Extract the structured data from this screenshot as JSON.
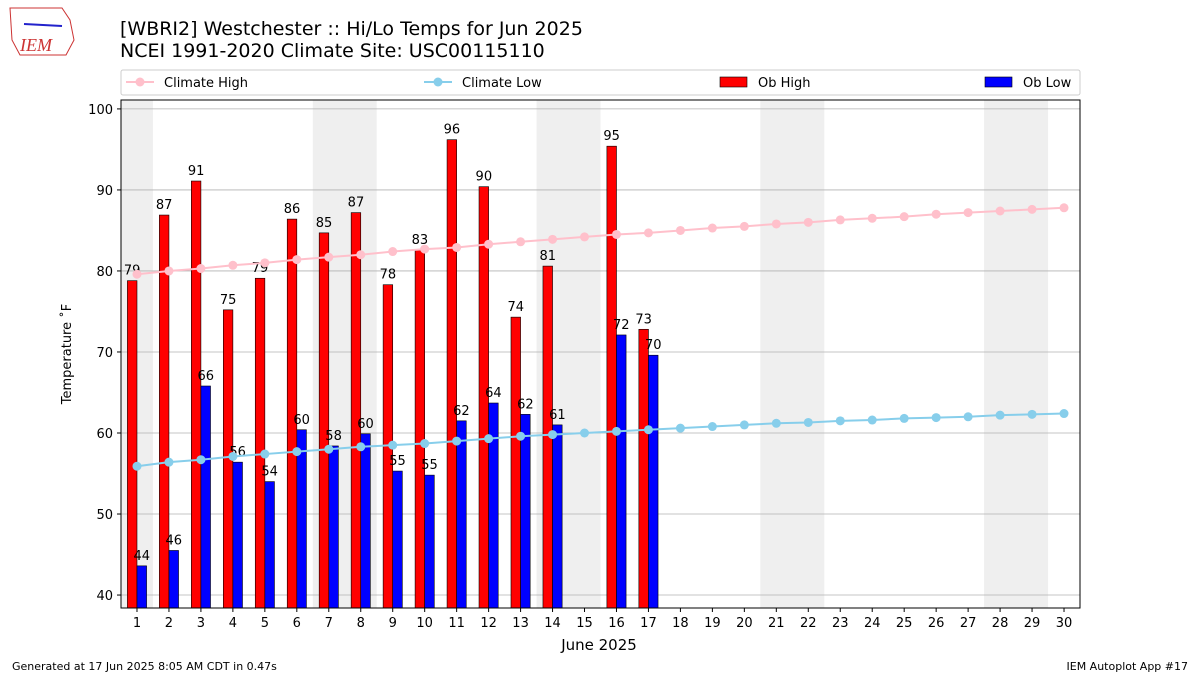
{
  "chart_data": {
    "type": "bar_line",
    "title": "[WBRI2] Westchester :: Hi/Lo Temps for Jun 2025",
    "subtitle": "NCEI 1991-2020 Climate Site: USC00115110",
    "x_label": "June 2025",
    "y_label": "Temperature ˚F",
    "footer_left": "Generated at 17 Jun 2025 8:05 AM CDT in 0.47s",
    "footer_right": "IEM Autoplot App #17",
    "logo_text": "IEM",
    "x": [
      1,
      2,
      3,
      4,
      5,
      6,
      7,
      8,
      9,
      10,
      11,
      12,
      13,
      14,
      15,
      16,
      17,
      18,
      19,
      20,
      21,
      22,
      23,
      24,
      25,
      26,
      27,
      28,
      29,
      30
    ],
    "xlim": [
      0.5,
      30.5
    ],
    "xticks": [
      1,
      2,
      3,
      4,
      5,
      6,
      7,
      8,
      9,
      10,
      11,
      12,
      13,
      14,
      15,
      16,
      17,
      18,
      19,
      20,
      21,
      22,
      23,
      24,
      25,
      26,
      27,
      28,
      29,
      30
    ],
    "ylim": [
      38.4,
      101.1
    ],
    "yticks": [
      40,
      50,
      60,
      70,
      80,
      90,
      100
    ],
    "grid": true,
    "weekend_shading": [
      [
        0.5,
        1.5
      ],
      [
        6.5,
        8.5
      ],
      [
        13.5,
        15.5
      ],
      [
        20.5,
        22.5
      ],
      [
        27.5,
        29.5
      ]
    ],
    "series": [
      {
        "name": "Climate High",
        "kind": "line",
        "color": "#ffc0cb",
        "values": [
          79.6,
          80.0,
          80.3,
          80.7,
          81.0,
          81.4,
          81.7,
          82.0,
          82.4,
          82.7,
          82.9,
          83.3,
          83.6,
          83.9,
          84.2,
          84.5,
          84.7,
          85.0,
          85.3,
          85.5,
          85.8,
          86.0,
          86.3,
          86.5,
          86.7,
          87.0,
          87.2,
          87.4,
          87.6,
          87.8
        ]
      },
      {
        "name": "Climate Low",
        "kind": "line",
        "color": "#87ceeb",
        "values": [
          55.9,
          56.4,
          56.7,
          57.1,
          57.4,
          57.7,
          58.0,
          58.3,
          58.5,
          58.7,
          59.0,
          59.3,
          59.6,
          59.8,
          60.0,
          60.2,
          60.4,
          60.6,
          60.8,
          61.0,
          61.2,
          61.3,
          61.5,
          61.6,
          61.8,
          61.9,
          62.0,
          62.2,
          62.3,
          62.4
        ]
      },
      {
        "name": "Ob High",
        "kind": "bar",
        "color": "#ff0000",
        "values": [
          78.8,
          86.9,
          91.1,
          75.2,
          79.1,
          86.4,
          84.7,
          87.2,
          78.3,
          82.6,
          96.2,
          90.4,
          74.3,
          80.6,
          null,
          95.4,
          72.8,
          null,
          null,
          null,
          null,
          null,
          null,
          null,
          null,
          null,
          null,
          null,
          null,
          null
        ],
        "value_labels": [
          "79",
          "87",
          "91",
          "75",
          "79",
          "86",
          "85",
          "87",
          "78",
          "83",
          "96",
          "90",
          "74",
          "81",
          null,
          "95",
          "73",
          null,
          null,
          null,
          null,
          null,
          null,
          null,
          null,
          null,
          null,
          null,
          null,
          null
        ]
      },
      {
        "name": "Ob Low",
        "kind": "bar",
        "color": "#0000ff",
        "values": [
          43.6,
          45.5,
          65.8,
          56.4,
          54.0,
          60.4,
          58.4,
          59.9,
          55.3,
          54.8,
          61.5,
          63.7,
          62.3,
          61.0,
          null,
          72.1,
          69.6,
          null,
          null,
          null,
          null,
          null,
          null,
          null,
          null,
          null,
          null,
          null,
          null,
          null
        ],
        "value_labels": [
          "44",
          "46",
          "66",
          "56",
          "54",
          "60",
          "58",
          "60",
          "55",
          "55",
          "62",
          "64",
          "62",
          "61",
          null,
          "72",
          "70",
          null,
          null,
          null,
          null,
          null,
          null,
          null,
          null,
          null,
          null,
          null,
          null,
          null
        ]
      }
    ]
  }
}
